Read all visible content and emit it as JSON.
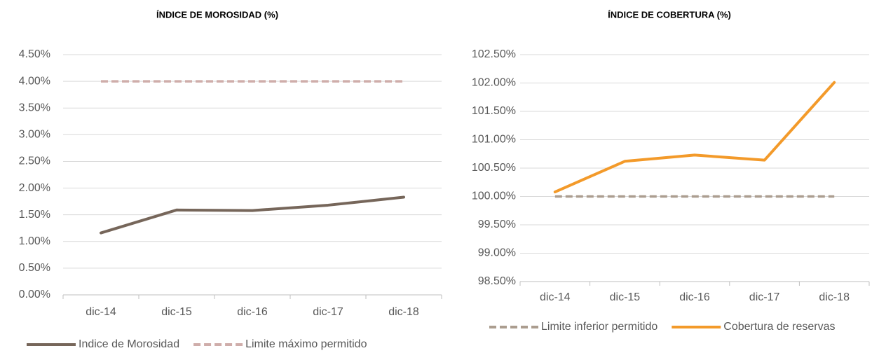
{
  "chart_data": [
    {
      "type": "line",
      "title": "ÍNDICE DE MOROSIDAD (%)",
      "categories": [
        "dic-14",
        "dic-15",
        "dic-16",
        "dic-17",
        "dic-18"
      ],
      "series": [
        {
          "name": "Indice de Morosidad",
          "color": "#76665a",
          "dashed": false,
          "values": [
            1.16,
            1.59,
            1.58,
            1.68,
            1.83
          ]
        },
        {
          "name": "Limite máximo permitido",
          "color": "#cfadaa",
          "dashed": true,
          "values": [
            4.0,
            4.0,
            4.0,
            4.0,
            4.0
          ]
        }
      ],
      "ylim": [
        0,
        4.5
      ],
      "yticks": [
        {
          "value": 0,
          "label": "0.00%"
        },
        {
          "value": 0.5,
          "label": "0.50%"
        },
        {
          "value": 1,
          "label": "1.00%"
        },
        {
          "value": 1.5,
          "label": "1.50%"
        },
        {
          "value": 2,
          "label": "2.00%"
        },
        {
          "value": 2.5,
          "label": "2.50%"
        },
        {
          "value": 3,
          "label": "3.00%"
        },
        {
          "value": 3.5,
          "label": "3.50%"
        },
        {
          "value": 4,
          "label": "4.00%"
        },
        {
          "value": 4.5,
          "label": "4.50%"
        }
      ],
      "grid": true,
      "legend": "bottom"
    },
    {
      "type": "line",
      "title": "ÍNDICE DE COBERTURA (%)",
      "categories": [
        "dic-14",
        "dic-15",
        "dic-16",
        "dic-17",
        "dic-18"
      ],
      "series": [
        {
          "name": "Limite inferior permitido",
          "color": "#ab9d8f",
          "dashed": true,
          "values": [
            100,
            100,
            100,
            100,
            100
          ]
        },
        {
          "name": "Cobertura de reservas",
          "color": "#f39a2a",
          "dashed": false,
          "values": [
            100.08,
            100.62,
            100.73,
            100.64,
            102.01
          ]
        }
      ],
      "ylim": [
        98.5,
        102.5
      ],
      "yticks": [
        {
          "value": 98.5,
          "label": "98.50%"
        },
        {
          "value": 99,
          "label": "99.00%"
        },
        {
          "value": 99.5,
          "label": "99.50%"
        },
        {
          "value": 100,
          "label": "100.00%"
        },
        {
          "value": 100.5,
          "label": "100.50%"
        },
        {
          "value": 101,
          "label": "101.00%"
        },
        {
          "value": 101.5,
          "label": "101.50%"
        },
        {
          "value": 102,
          "label": "102.00%"
        },
        {
          "value": 102.5,
          "label": "102.50%"
        }
      ],
      "grid": true,
      "legend": "bottom"
    }
  ]
}
